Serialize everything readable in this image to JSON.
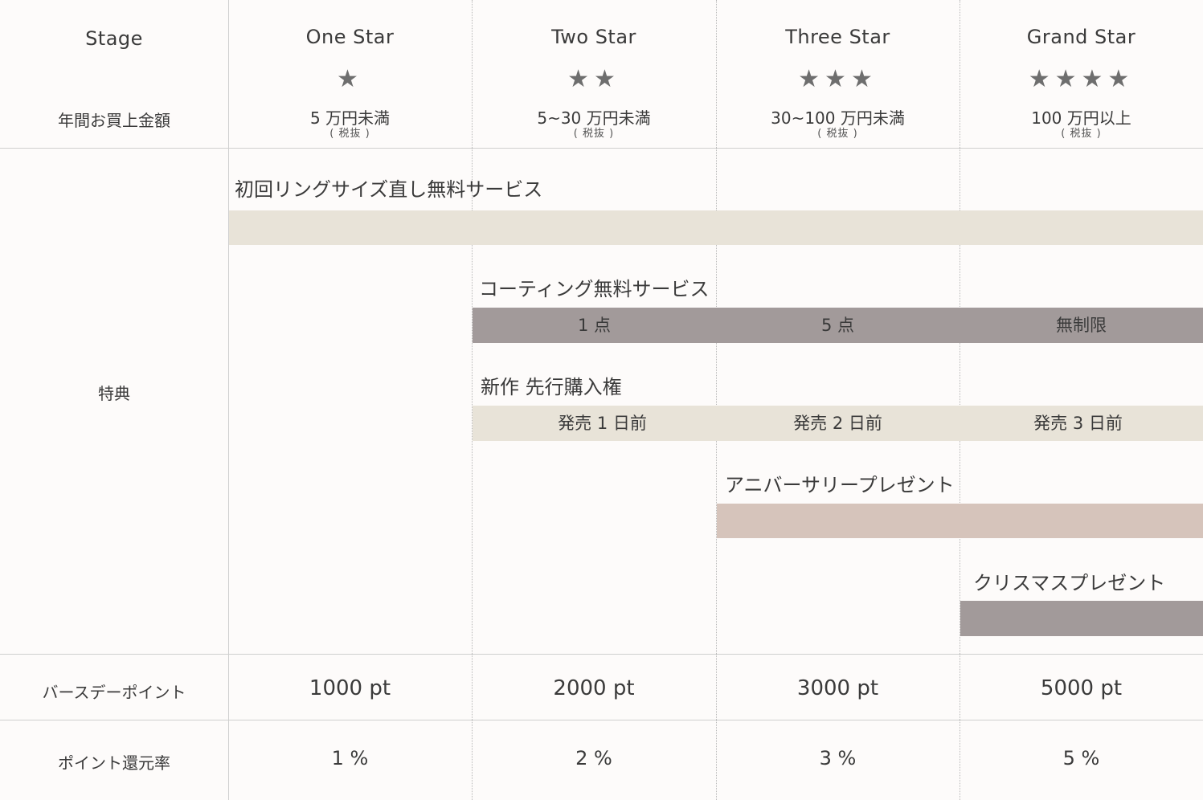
{
  "header": {
    "stage_label": "Stage",
    "amount_label": "年間お買上金額"
  },
  "stages": [
    {
      "name": "One Star",
      "stars": "★",
      "amount": "5 万円未満",
      "tax": "( 税抜 )"
    },
    {
      "name": "Two Star",
      "stars": "★★",
      "amount": "5~30 万円未満",
      "tax": "( 税抜 )"
    },
    {
      "name": "Three Star",
      "stars": "★★★",
      "amount": "30~100 万円未満",
      "tax": "( 税抜 )"
    },
    {
      "name": "Grand Star",
      "stars": "★★★★",
      "amount": "100 万円以上",
      "tax": "( 税抜 )"
    }
  ],
  "benefits": {
    "label": "特典",
    "ring_resize": {
      "title": "初回リングサイズ直し無料サービス"
    },
    "coating": {
      "title": "コーティング無料サービス",
      "values": [
        "1 点",
        "5 点",
        "無制限"
      ]
    },
    "preorder": {
      "title": "新作 先行購入権",
      "values": [
        "発売 1 日前",
        "発売 2 日前",
        "発売 3 日前"
      ]
    },
    "anniversary": {
      "title": "アニバーサリープレゼント"
    },
    "christmas": {
      "title": "クリスマスプレゼント"
    }
  },
  "birthday": {
    "label": "バースデーポイント",
    "values": [
      "1000 pt",
      "2000 pt",
      "3000 pt",
      "5000 pt"
    ]
  },
  "return_rate": {
    "label": "ポイント還元率",
    "values": [
      "1 %",
      "2 %",
      "3 %",
      "5 %"
    ]
  },
  "colors": {
    "beige": "#e8e3d8",
    "gray": "#a29a9a",
    "pink": "#d6c4bb",
    "star": "#6e6e6e"
  }
}
